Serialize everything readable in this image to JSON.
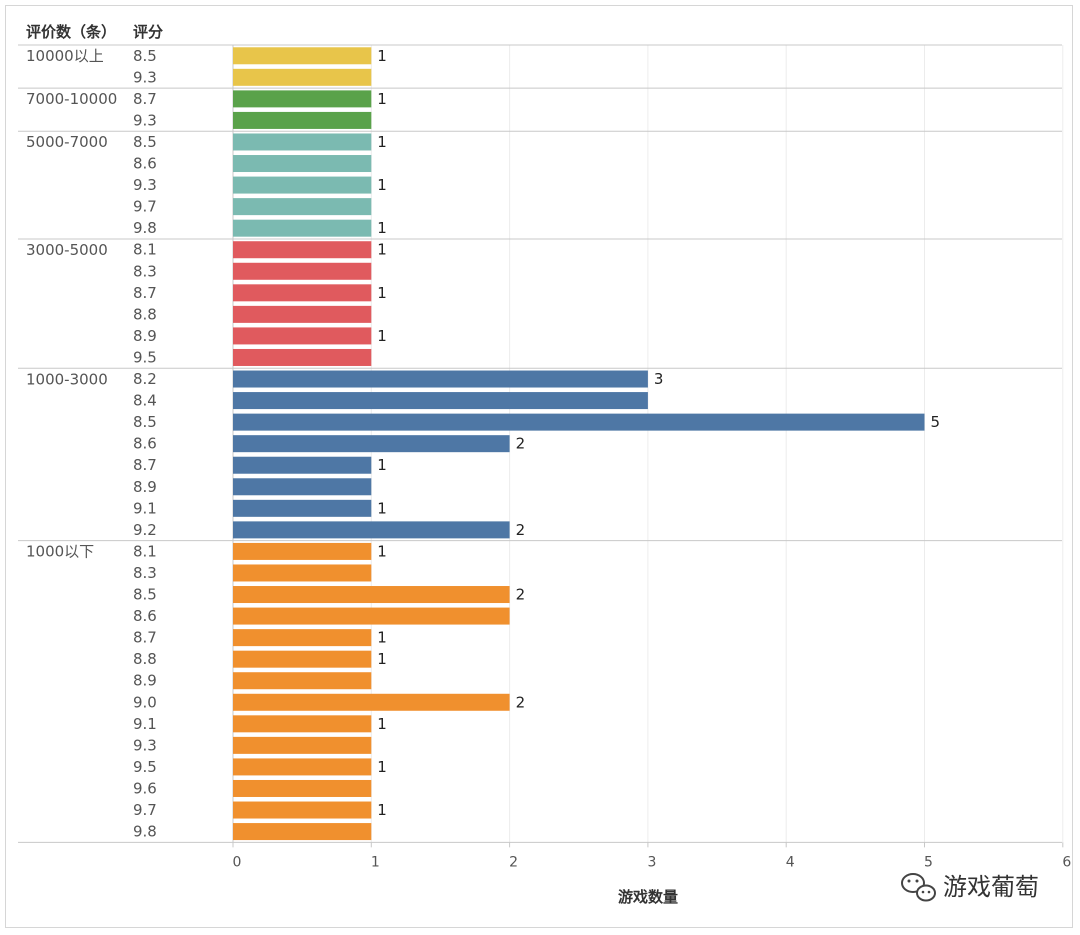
{
  "chart_data": {
    "type": "bar",
    "orientation": "horizontal",
    "header_group": "评价数（条）",
    "header_score": "评分",
    "xlabel": "游戏数量",
    "xlim": [
      0,
      6
    ],
    "xticks": [
      0,
      1,
      2,
      3,
      4,
      5,
      6
    ],
    "groups": [
      {
        "name": "10000以上",
        "color": "#e8c54a",
        "rows": [
          {
            "score": "8.5",
            "value": 1,
            "label": "1"
          },
          {
            "score": "9.3",
            "value": 1,
            "label": ""
          }
        ]
      },
      {
        "name": "7000-10000",
        "color": "#5aa24a",
        "rows": [
          {
            "score": "8.7",
            "value": 1,
            "label": "1"
          },
          {
            "score": "9.3",
            "value": 1,
            "label": ""
          }
        ]
      },
      {
        "name": "5000-7000",
        "color": "#7bbab1",
        "rows": [
          {
            "score": "8.5",
            "value": 1,
            "label": "1"
          },
          {
            "score": "8.6",
            "value": 1,
            "label": ""
          },
          {
            "score": "9.3",
            "value": 1,
            "label": "1"
          },
          {
            "score": "9.7",
            "value": 1,
            "label": ""
          },
          {
            "score": "9.8",
            "value": 1,
            "label": "1"
          }
        ]
      },
      {
        "name": "3000-5000",
        "color": "#e05a5e",
        "rows": [
          {
            "score": "8.1",
            "value": 1,
            "label": "1"
          },
          {
            "score": "8.3",
            "value": 1,
            "label": ""
          },
          {
            "score": "8.7",
            "value": 1,
            "label": "1"
          },
          {
            "score": "8.8",
            "value": 1,
            "label": ""
          },
          {
            "score": "8.9",
            "value": 1,
            "label": "1"
          },
          {
            "score": "9.5",
            "value": 1,
            "label": ""
          }
        ]
      },
      {
        "name": "1000-3000",
        "color": "#4e77a5",
        "rows": [
          {
            "score": "8.2",
            "value": 3,
            "label": "3"
          },
          {
            "score": "8.4",
            "value": 3,
            "label": ""
          },
          {
            "score": "8.5",
            "value": 5,
            "label": "5"
          },
          {
            "score": "8.6",
            "value": 2,
            "label": "2"
          },
          {
            "score": "8.7",
            "value": 1,
            "label": "1"
          },
          {
            "score": "8.9",
            "value": 1,
            "label": ""
          },
          {
            "score": "9.1",
            "value": 1,
            "label": "1"
          },
          {
            "score": "9.2",
            "value": 2,
            "label": "2"
          }
        ]
      },
      {
        "name": "1000以下",
        "color": "#f0902e",
        "rows": [
          {
            "score": "8.1",
            "value": 1,
            "label": "1"
          },
          {
            "score": "8.3",
            "value": 1,
            "label": ""
          },
          {
            "score": "8.5",
            "value": 2,
            "label": "2"
          },
          {
            "score": "8.6",
            "value": 2,
            "label": ""
          },
          {
            "score": "8.7",
            "value": 1,
            "label": "1"
          },
          {
            "score": "8.8",
            "value": 1,
            "label": "1"
          },
          {
            "score": "8.9",
            "value": 1,
            "label": ""
          },
          {
            "score": "9.0",
            "value": 2,
            "label": "2"
          },
          {
            "score": "9.1",
            "value": 1,
            "label": "1"
          },
          {
            "score": "9.3",
            "value": 1,
            "label": ""
          },
          {
            "score": "9.5",
            "value": 1,
            "label": "1"
          },
          {
            "score": "9.6",
            "value": 1,
            "label": ""
          },
          {
            "score": "9.7",
            "value": 1,
            "label": "1"
          },
          {
            "score": "9.8",
            "value": 1,
            "label": ""
          }
        ]
      }
    ]
  },
  "watermark": {
    "text": "游戏葡萄",
    "icon": "wechat-icon"
  }
}
